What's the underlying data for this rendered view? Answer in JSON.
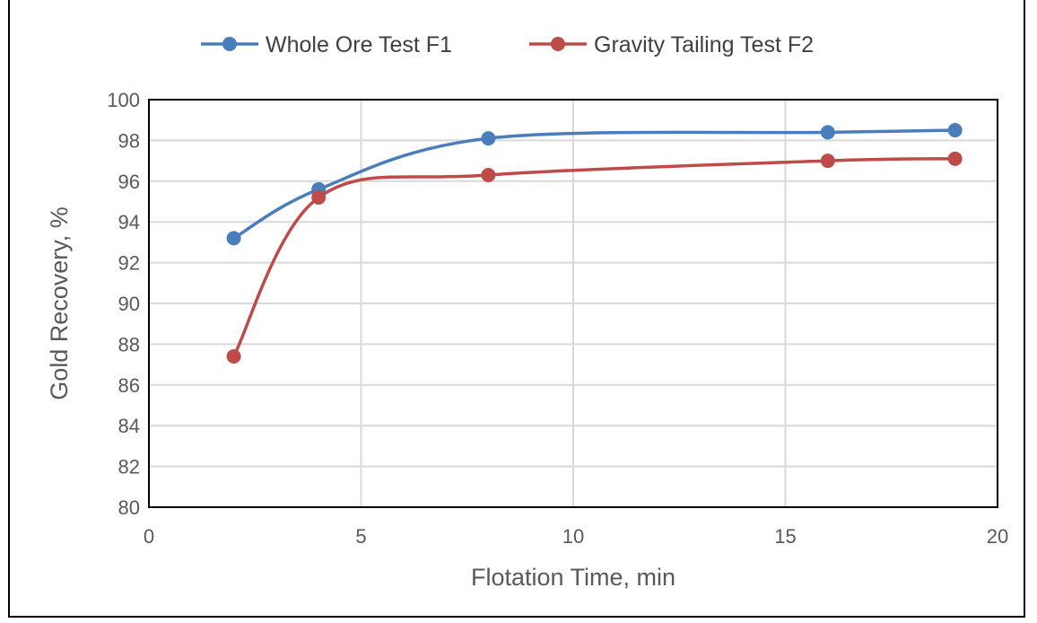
{
  "chart_data": {
    "type": "line",
    "title": "",
    "xlabel": "Flotation Time, min",
    "ylabel": "Gold Recovery, %",
    "xlim": [
      0,
      20
    ],
    "ylim": [
      80,
      100
    ],
    "xticks": [
      0,
      5,
      10,
      15,
      20
    ],
    "yticks": [
      80,
      82,
      84,
      86,
      88,
      90,
      92,
      94,
      96,
      98,
      100
    ],
    "grid": true,
    "legend_position": "top",
    "smooth": true,
    "series": [
      {
        "name": "Whole Ore Test F1",
        "color": "#4a7ebb",
        "x": [
          2,
          4,
          8,
          16,
          19
        ],
        "y": [
          93.2,
          95.6,
          98.1,
          98.4,
          98.5
        ]
      },
      {
        "name": "Gravity Tailing Test F2",
        "color": "#be4b48",
        "x": [
          2,
          4,
          8,
          16,
          19
        ],
        "y": [
          87.4,
          95.2,
          96.3,
          97.0,
          97.1
        ]
      }
    ]
  }
}
